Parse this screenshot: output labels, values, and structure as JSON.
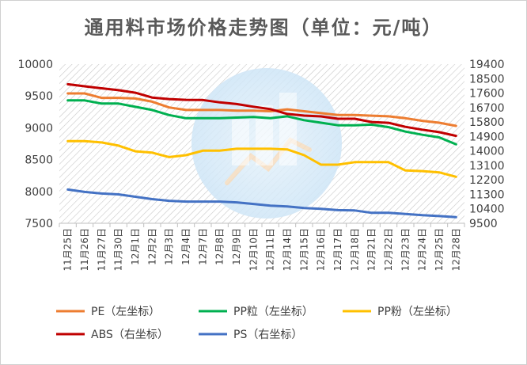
{
  "chart_data": {
    "type": "line",
    "title": "通用料市场价格走势图（单位：元/吨）",
    "categories": [
      "11月25日",
      "11月26日",
      "11月27日",
      "11月30日",
      "12月1日",
      "12月2日",
      "12月3日",
      "12月4日",
      "12月7日",
      "12月8日",
      "12月9日",
      "12月10日",
      "12月11日",
      "12月14日",
      "12月15日",
      "12月16日",
      "12月17日",
      "12月18日",
      "12月21日",
      "12月22日",
      "12月23日",
      "12月24日",
      "12月25日",
      "12月28日"
    ],
    "y_left": {
      "min": 7500,
      "max": 10000,
      "ticks": [
        "10000",
        "9500",
        "9000",
        "8500",
        "8000",
        "7500"
      ]
    },
    "y_right": {
      "min": 9500,
      "max": 19400,
      "ticks": [
        "19400",
        "18500",
        "17600",
        "16700",
        "15800",
        "14900",
        "14000",
        "13100",
        "12200",
        "11300",
        "10400",
        "9500"
      ]
    },
    "series": [
      {
        "name": "PE（左坐标）",
        "axis": "left",
        "color": "#ed7d31",
        "values": [
          9540,
          9540,
          9470,
          9470,
          9460,
          9410,
          9320,
          9280,
          9280,
          9280,
          9270,
          9270,
          9260,
          9290,
          9260,
          9230,
          9200,
          9200,
          9190,
          9180,
          9150,
          9110,
          9080,
          9030
        ]
      },
      {
        "name": "PP粒（左坐标）",
        "axis": "left",
        "color": "#00b050",
        "values": [
          9430,
          9430,
          9380,
          9380,
          9330,
          9280,
          9200,
          9150,
          9150,
          9150,
          9160,
          9170,
          9150,
          9180,
          9120,
          9080,
          9040,
          9040,
          9050,
          9010,
          8940,
          8890,
          8850,
          8740
        ]
      },
      {
        "name": "PP粉（左坐标）",
        "axis": "left",
        "color": "#ffc000",
        "values": [
          8790,
          8790,
          8770,
          8720,
          8630,
          8610,
          8540,
          8570,
          8640,
          8640,
          8670,
          8670,
          8670,
          8660,
          8570,
          8420,
          8420,
          8460,
          8460,
          8460,
          8330,
          8320,
          8300,
          8230
        ]
      },
      {
        "name": "ABS（右坐标）",
        "axis": "right",
        "color": "#c00000",
        "values": [
          18150,
          18020,
          17900,
          17780,
          17620,
          17320,
          17230,
          17180,
          17170,
          17020,
          16920,
          16750,
          16600,
          16300,
          16200,
          16150,
          16000,
          16000,
          15800,
          15750,
          15500,
          15320,
          15170,
          14940
        ]
      },
      {
        "name": "PS（右坐标）",
        "axis": "right",
        "color": "#4472c4",
        "values": [
          11600,
          11450,
          11350,
          11300,
          11150,
          11000,
          10900,
          10850,
          10850,
          10850,
          10800,
          10700,
          10600,
          10550,
          10450,
          10400,
          10320,
          10300,
          10150,
          10150,
          10080,
          10000,
          9950,
          9880
        ]
      }
    ]
  }
}
